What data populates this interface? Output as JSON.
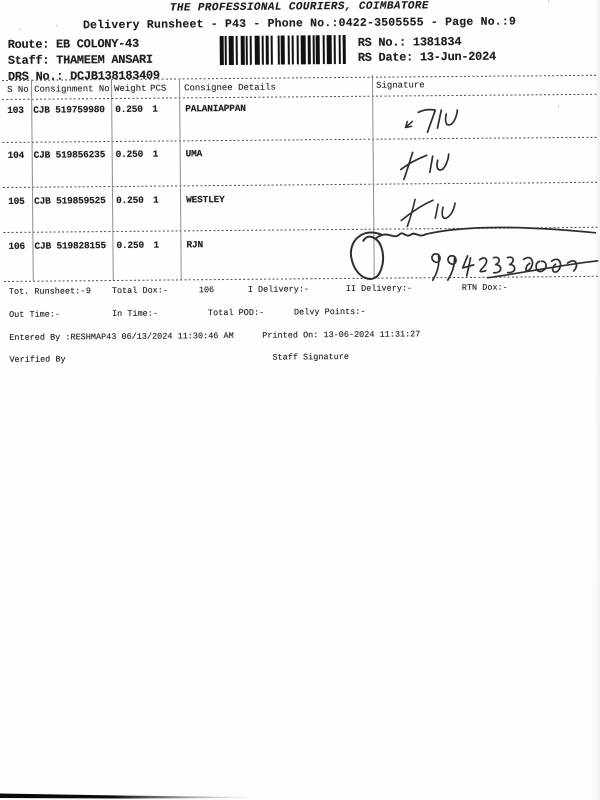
{
  "colors": {
    "ink": "#1d1d1d",
    "rule_line": "#4e4e4e",
    "paper": "#fdfdfc",
    "handwriting": "#2e2e2e"
  },
  "header": {
    "title": "THE PROFESSIONAL COURIERS, COIMBATORE",
    "subtitle": "Delivery Runsheet - P43 - Phone No.:0422-3505555 - Page No.:9",
    "route_label": "Route:",
    "route": "EB COLONY-43",
    "staff_label": "Staff:",
    "staff": "THAMEEM ANSARI",
    "drs_label": "DRS No.:",
    "drs": "DCJB138183409",
    "rs_no_label": "RS No.:",
    "rs_no": "1381834",
    "rs_date_label": "RS Date:",
    "rs_date": "13-Jun-2024"
  },
  "barcode": {
    "semantic": "rs-barcode",
    "pattern": [
      2,
      1,
      1,
      1,
      3,
      1,
      1,
      2,
      2,
      1,
      1,
      1,
      1,
      2,
      3,
      1,
      1,
      1,
      2,
      1,
      1,
      3,
      1,
      1,
      2,
      2,
      1,
      1,
      1,
      2,
      1,
      1,
      3,
      1,
      2,
      1,
      1,
      1,
      2,
      2,
      1,
      1,
      3,
      1,
      1,
      2,
      1,
      1,
      2,
      1
    ]
  },
  "table": {
    "headers": {
      "s_no": "S No",
      "consignment": "Consignment No",
      "weight": "Weight",
      "pcs": "PCS",
      "consignee": "Consignee Details",
      "signature": "Signature"
    },
    "rows": [
      {
        "s_no": "103",
        "consignment": "CJB 519759980",
        "weight": "0.250",
        "pcs": "1",
        "consignee": "PALANIAPPAN",
        "signature_text": "TIU"
      },
      {
        "s_no": "104",
        "consignment": "CJB 519856235",
        "weight": "0.250",
        "pcs": "1",
        "consignee": "UMA",
        "signature_text": "TIU"
      },
      {
        "s_no": "105",
        "consignment": "CJB 519859525",
        "weight": "0.250",
        "pcs": "1",
        "consignee": "WESTLEY",
        "signature_text": "TIU"
      },
      {
        "s_no": "106",
        "consignment": "CJB 519828155",
        "weight": "0.250",
        "pcs": "1",
        "consignee": "RJN",
        "signature_text": "TIU Ramu 9942335045"
      }
    ]
  },
  "summary": {
    "tot_runsheet_label": "Tot. Runsheet:-",
    "tot_runsheet_value": "9",
    "total_dox_label": "Total Dox:-",
    "total_dox_value": "106",
    "i_delivery_label": "I Delivery:-",
    "ii_delivery_label": "II Delivery:-",
    "rtn_dox_label": "RTN Dox:-",
    "out_time_label": "Out Time:-",
    "in_time_label": "In Time:-",
    "total_pod_label": "Total POD:-",
    "delvy_points_label": "Delvy Points:-",
    "entered_by": "Entered By :RESHMAP43 06/13/2024 11:30:46 AM",
    "printed_on": "Printed On: 13-06-2024 11:31:27",
    "verified_by_label": "Verified By",
    "staff_signature_label": "Staff Signature"
  }
}
